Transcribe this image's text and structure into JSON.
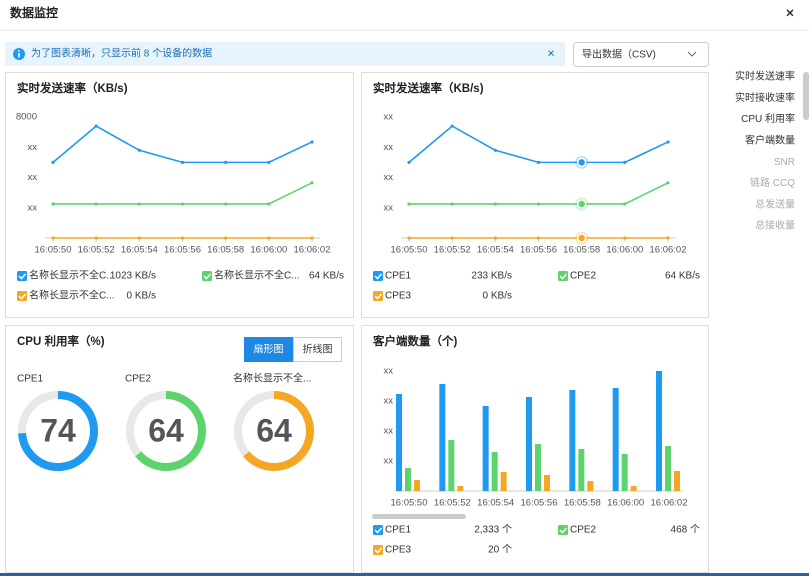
{
  "header": {
    "title": "数据监控",
    "close": "×"
  },
  "notice": {
    "text": "为了图表清晰，只显示前 8 个设备的数据",
    "close": "×"
  },
  "export": "导出数据（CSV)",
  "nav": [
    {
      "label": "实时发送速率",
      "enabled": true
    },
    {
      "label": "实时接收速率",
      "enabled": true
    },
    {
      "label": "CPU 利用率",
      "enabled": true
    },
    {
      "label": "客户端数量",
      "enabled": true
    },
    {
      "label": "SNR",
      "enabled": false
    },
    {
      "label": "链路 CCQ",
      "enabled": false
    },
    {
      "label": "总发送量",
      "enabled": false
    },
    {
      "label": "总接收量",
      "enabled": false
    }
  ],
  "chart_data": [
    {
      "type": "line",
      "title": "实时发送速率（KB/s)",
      "categories": [
        "16:05:50",
        "16:05:52",
        "16:05:54",
        "16:05:56",
        "16:05:58",
        "16:06:00",
        "16:06:02"
      ],
      "ylim": [
        0,
        8000
      ],
      "yticks": [
        {
          "value": 2000,
          "label": "xx"
        },
        {
          "value": 4000,
          "label": "xx"
        },
        {
          "value": 6000,
          "label": "xx"
        },
        8000
      ],
      "grid": false,
      "series": [
        {
          "name": "名称长显示不全C...",
          "legend_value": "1023 KB/s",
          "color": "#1e9af0",
          "values": [
            5000,
            7400,
            5800,
            5000,
            5000,
            5000,
            6350
          ]
        },
        {
          "name": "名称长显示不全C...",
          "legend_value": "64 KB/s",
          "color": "#5dd36d",
          "values": [
            2250,
            2250,
            2250,
            2250,
            2250,
            2250,
            3650
          ]
        },
        {
          "name": "名称长显示不全C...",
          "legend_value": "0 KB/s",
          "color": "#f5a623",
          "values": [
            0,
            0,
            0,
            0,
            0,
            0,
            0
          ]
        }
      ]
    },
    {
      "type": "line",
      "title": "实时发送速率（KB/s)",
      "categories": [
        "16:05:50",
        "16:05:52",
        "16:05:54",
        "16:05:56",
        "16:05:58",
        "16:06:00",
        "16:06:02"
      ],
      "ylim": [
        0,
        8000
      ],
      "yticks": [
        {
          "value": 2000,
          "label": "xx"
        },
        {
          "value": 4000,
          "label": "xx"
        },
        {
          "value": 6000,
          "label": "xx"
        },
        {
          "value": 8000,
          "label": "xx"
        }
      ],
      "grid": false,
      "highlight_index": 4,
      "series": [
        {
          "name": "CPE1",
          "legend_value": "233 KB/s",
          "color": "#1e9af0",
          "values": [
            5000,
            7400,
            5800,
            5000,
            5000,
            5000,
            6350
          ]
        },
        {
          "name": "CPE2",
          "legend_value": "64 KB/s",
          "color": "#5dd36d",
          "values": [
            2250,
            2250,
            2250,
            2250,
            2250,
            2250,
            3650
          ]
        },
        {
          "name": "CPE3",
          "legend_value": "0 KB/s",
          "color": "#f5a623",
          "values": [
            0,
            0,
            0,
            0,
            0,
            0,
            0
          ]
        }
      ]
    },
    {
      "type": "gauge",
      "title": "CPU 利用率（%)",
      "tabs": [
        "扇形图",
        "折线图"
      ],
      "active_tab": 0,
      "ylim": [
        0,
        100
      ],
      "series": [
        {
          "name": "CPE1",
          "color": "#1e9af0",
          "value": 74
        },
        {
          "name": "CPE2",
          "color": "#5dd36d",
          "value": 64
        },
        {
          "name": "名称长显示不全...",
          "color": "#f5a623",
          "value": 64
        }
      ]
    },
    {
      "type": "bar",
      "title": "客户端数量（个)",
      "categories": [
        "16:05:50",
        "16:05:52",
        "16:05:54",
        "16:05:56",
        "16:05:58",
        "16:06:00",
        "16:06:02"
      ],
      "ylim": [
        0,
        2000
      ],
      "yticks": [
        {
          "value": 500,
          "label": "xx"
        },
        {
          "value": 1000,
          "label": "xx"
        },
        {
          "value": 1500,
          "label": "xx"
        },
        {
          "value": 2000,
          "label": "xx"
        }
      ],
      "grid": false,
      "series": [
        {
          "name": "CPE1",
          "legend_value": "2,333 个",
          "color": "#1e9af0",
          "values": [
            1617,
            1783,
            1417,
            1567,
            1683,
            1717,
            2000
          ]
        },
        {
          "name": "CPE2",
          "legend_value": "468 个",
          "color": "#5dd36d",
          "values": [
            383,
            850,
            650,
            783,
            700,
            617,
            750
          ]
        },
        {
          "name": "CPE3",
          "legend_value": "20 个",
          "color": "#f5a623",
          "values": [
            183,
            83,
            317,
            267,
            167,
            83,
            333
          ]
        }
      ]
    }
  ]
}
